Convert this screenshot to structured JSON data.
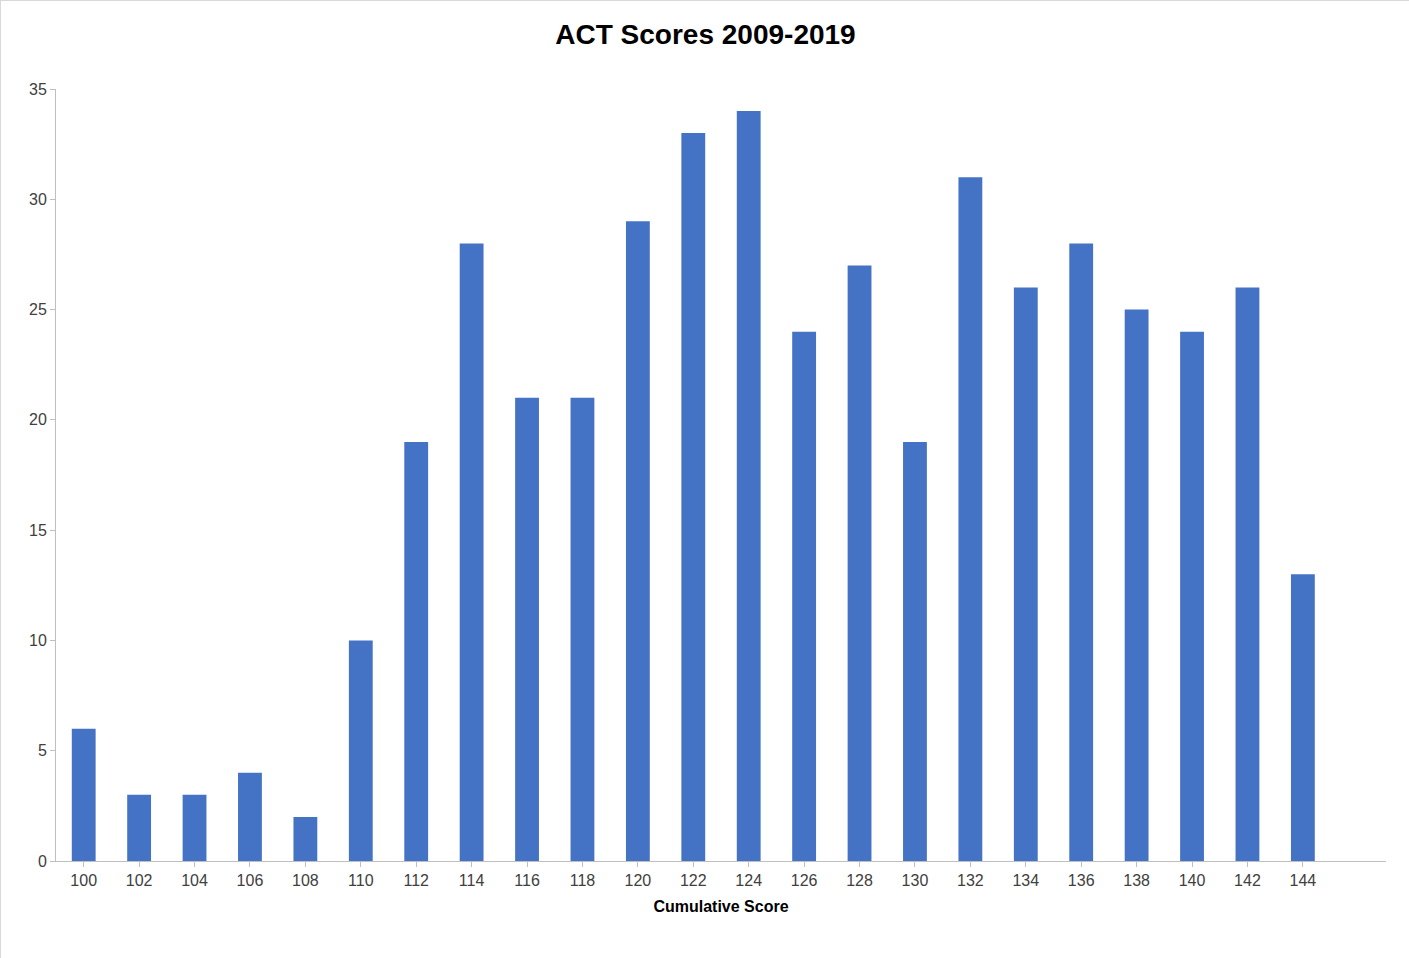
{
  "chart_data": {
    "type": "bar",
    "title": "ACT Scores 2009-2019",
    "x_label": "Cumulative Score",
    "categories": [
      "100",
      "102",
      "104",
      "106",
      "108",
      "110",
      "112",
      "114",
      "116",
      "118",
      "120",
      "122",
      "124",
      "126",
      "128",
      "130",
      "132",
      "134",
      "136",
      "138",
      "140",
      "142",
      "144"
    ],
    "values": [
      6,
      3,
      3,
      4,
      2,
      10,
      19,
      28,
      21,
      21,
      29,
      33,
      34,
      24,
      27,
      19,
      31,
      26,
      28,
      25,
      24,
      26,
      13
    ],
    "color": "#4472c4",
    "ylim": [
      0,
      35
    ],
    "yticks": [
      0,
      5,
      10,
      15,
      20,
      25,
      30,
      35
    ],
    "grid": false
  }
}
